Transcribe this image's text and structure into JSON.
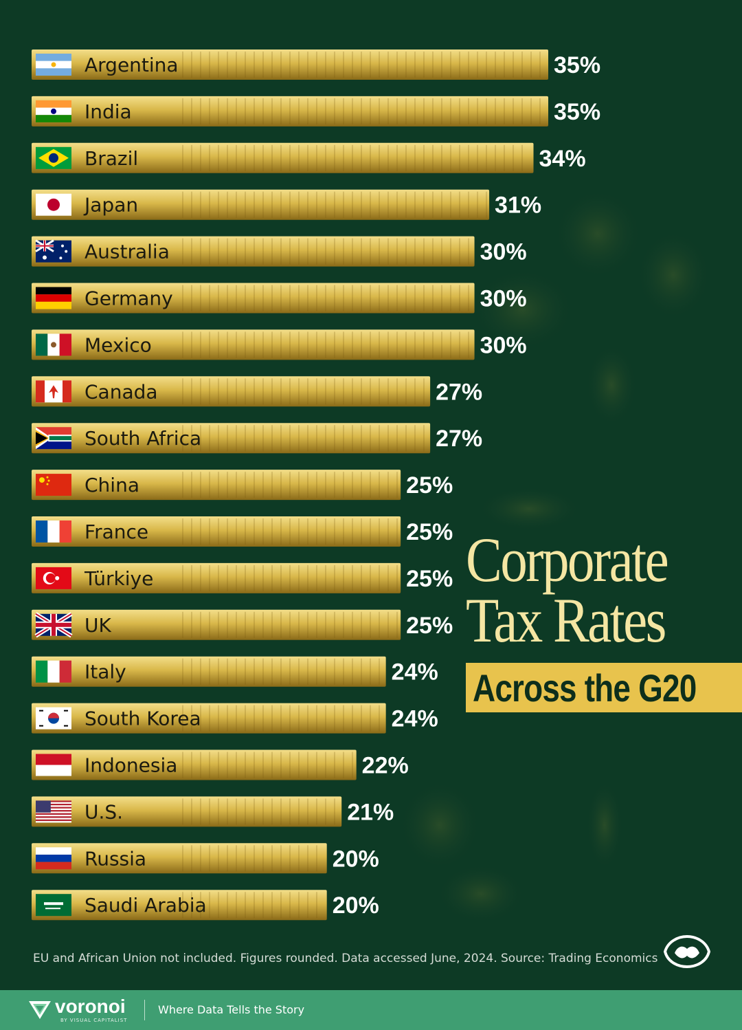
{
  "chart_data": {
    "type": "bar",
    "orientation": "horizontal",
    "title": "Corporate Tax Rates",
    "subtitle": "Across the G20",
    "categories": [
      "Argentina",
      "India",
      "Brazil",
      "Japan",
      "Australia",
      "Germany",
      "Mexico",
      "Canada",
      "South Africa",
      "China",
      "France",
      "Türkiye",
      "UK",
      "Italy",
      "South Korea",
      "Indonesia",
      "U.S.",
      "Russia",
      "Saudi Arabia"
    ],
    "values": [
      35,
      35,
      34,
      31,
      30,
      30,
      30,
      27,
      27,
      25,
      25,
      25,
      25,
      24,
      24,
      22,
      21,
      20,
      20
    ],
    "value_labels": [
      "35%",
      "35%",
      "34%",
      "31%",
      "30%",
      "30%",
      "30%",
      "27%",
      "27%",
      "25%",
      "25%",
      "25%",
      "25%",
      "24%",
      "24%",
      "22%",
      "21%",
      "20%",
      "20%"
    ],
    "flags": [
      "argentina-flag",
      "india-flag",
      "brazil-flag",
      "japan-flag",
      "australia-flag",
      "germany-flag",
      "mexico-flag",
      "canada-flag",
      "south-africa-flag",
      "china-flag",
      "france-flag",
      "turkiye-flag",
      "uk-flag",
      "italy-flag",
      "south-korea-flag",
      "indonesia-flag",
      "us-flag",
      "russia-flag",
      "saudi-arabia-flag"
    ],
    "grid": false,
    "colors": {
      "bar": "#d9b84a",
      "bar_dark": "#8a6a18",
      "background": "#0d3a25",
      "title": "#f5e6a3",
      "subtitle_bg": "#e8c34d"
    }
  },
  "footnote": "EU and African Union not included. Figures rounded. Data accessed June, 2024. Source: Trading Economics",
  "footer": {
    "brand": "voronoi",
    "brand_sub": "BY VISUAL CAPITALIST",
    "tagline": "Where Data Tells the Story"
  }
}
